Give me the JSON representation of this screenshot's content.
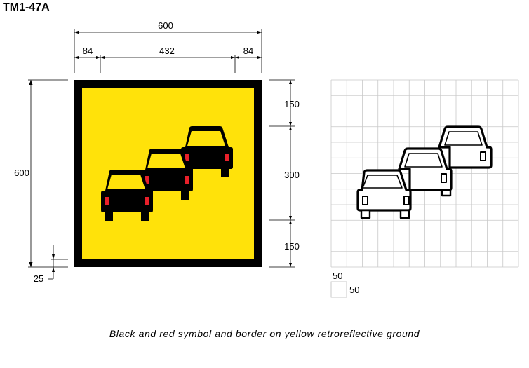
{
  "title": "TM1-47A",
  "caption": "Black and red symbol and border on yellow retroreflective ground",
  "colors": {
    "border": "#000000",
    "ground": "#FFE20A",
    "tail_lights": "#E8202A",
    "grid": "#C8C8C8"
  },
  "dimensions": {
    "overall_width": "600",
    "left_margin": "84",
    "symbol_width": "432",
    "right_margin": "84",
    "overall_height": "600",
    "top_margin": "150",
    "symbol_height": "300",
    "bottom_margin": "150",
    "border_width": "25"
  },
  "grid_legend": {
    "cell_width": "50",
    "cell_height": "50"
  }
}
